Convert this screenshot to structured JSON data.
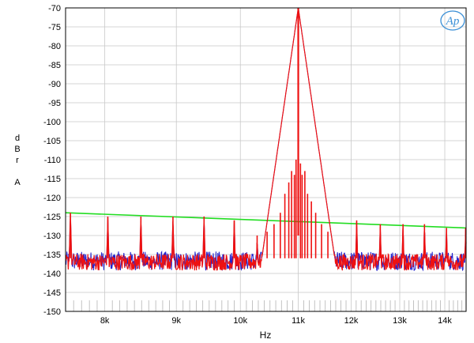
{
  "chart_data": {
    "type": "line",
    "title": "",
    "xlabel": "Hz",
    "ylabel_lines": [
      "d",
      "B",
      "r",
      "",
      "A"
    ],
    "xscale": "log",
    "xlim": [
      7500,
      14500
    ],
    "ylim": [
      -150,
      -70
    ],
    "yticks": [
      -70,
      -75,
      -80,
      -85,
      -90,
      -95,
      -100,
      -105,
      -110,
      -115,
      -120,
      -125,
      -130,
      -135,
      -140,
      -145,
      -150
    ],
    "xticks": [
      {
        "value": 8000,
        "label": "8k"
      },
      {
        "value": 9000,
        "label": "9k"
      },
      {
        "value": 10000,
        "label": "10k"
      },
      {
        "value": 11000,
        "label": "11k"
      },
      {
        "value": 12000,
        "label": "12k"
      },
      {
        "value": 13000,
        "label": "13k"
      },
      {
        "value": 14000,
        "label": "14k"
      }
    ],
    "grid": true,
    "noise_floor_dbr": -137,
    "series": [
      {
        "color": "#2222cc",
        "kind": "spectrum"
      },
      {
        "color": "#ee1111",
        "kind": "spectrum"
      },
      {
        "color": "#22dd22",
        "kind": "reference",
        "x": [
          7500,
          14500
        ],
        "y": [
          -124,
          -128
        ]
      }
    ],
    "fundamental": {
      "x": 11000,
      "y": -70
    },
    "sidebands": [
      {
        "x": 10450,
        "y": -129
      },
      {
        "x": 10570,
        "y": -127
      },
      {
        "x": 10680,
        "y": -124
      },
      {
        "x": 10760,
        "y": -119
      },
      {
        "x": 10830,
        "y": -116
      },
      {
        "x": 10880,
        "y": -113
      },
      {
        "x": 10930,
        "y": -114
      },
      {
        "x": 10960,
        "y": -110
      },
      {
        "x": 11040,
        "y": -111
      },
      {
        "x": 11070,
        "y": -114
      },
      {
        "x": 11120,
        "y": -113
      },
      {
        "x": 11170,
        "y": -119
      },
      {
        "x": 11240,
        "y": -121
      },
      {
        "x": 11320,
        "y": -124
      },
      {
        "x": 11430,
        "y": -127
      },
      {
        "x": 11550,
        "y": -129
      }
    ],
    "spurs": [
      {
        "x": 7560,
        "y": -124
      },
      {
        "x": 8040,
        "y": -125
      },
      {
        "x": 8490,
        "y": -125
      },
      {
        "x": 8950,
        "y": -125
      },
      {
        "x": 9420,
        "y": -125
      },
      {
        "x": 9900,
        "y": -126
      },
      {
        "x": 10280,
        "y": -130
      },
      {
        "x": 12110,
        "y": -126
      },
      {
        "x": 12590,
        "y": -127
      },
      {
        "x": 13070,
        "y": -127
      },
      {
        "x": 13540,
        "y": -127
      },
      {
        "x": 14040,
        "y": -128
      },
      {
        "x": 14490,
        "y": -128
      }
    ],
    "logo_text": "Ap"
  }
}
